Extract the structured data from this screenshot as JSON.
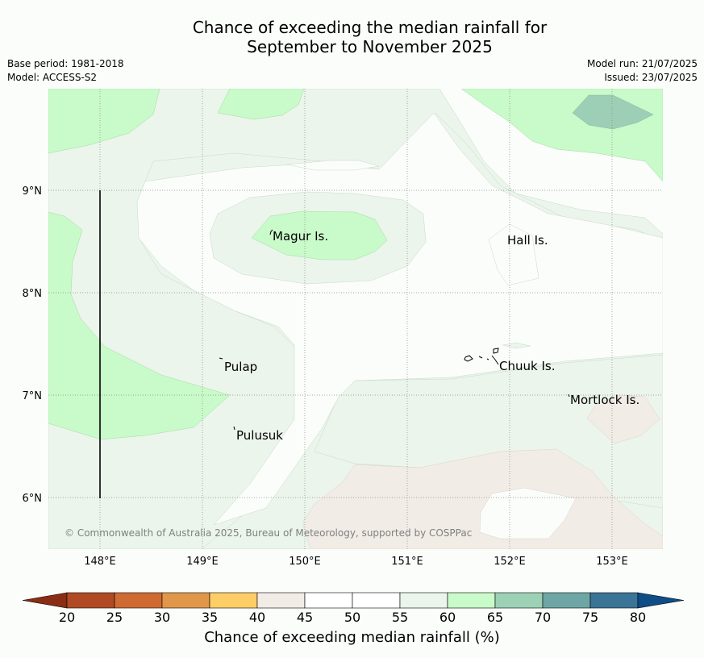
{
  "title": {
    "line1": "Chance of exceeding the median rainfall for",
    "line2": "September to November 2025"
  },
  "meta": {
    "base_period": "Base period: 1981-2018",
    "model": "Model: ACCESS-S2",
    "model_run": "Model run: 21/07/2025",
    "issued": "Issued: 23/07/2025"
  },
  "axes": {
    "lon_labels": [
      "148°E",
      "149°E",
      "150°E",
      "151°E",
      "152°E",
      "153°E"
    ],
    "lat_labels": [
      "9°N",
      "8°N",
      "7°N",
      "6°N"
    ]
  },
  "places": {
    "magur": "Magur Is.",
    "hall": "Hall Is.",
    "pulap": "Pulap",
    "chuuk": "Chuuk Is.",
    "mortlock": "Mortlock Is.",
    "pulusuk": "Pulusuk"
  },
  "copyright": "© Commonwealth of Australia 2025, Bureau of Meteorology, supported by COSPPac",
  "colorbar": {
    "title": "Chance of exceeding median rainfall (%)",
    "ticks": [
      "20",
      "25",
      "30",
      "35",
      "40",
      "45",
      "50",
      "55",
      "60",
      "65",
      "70",
      "75",
      "80"
    ],
    "colors": [
      "#b04a25",
      "#cf6a33",
      "#e0974a",
      "#fdcd66",
      "#f1ece6",
      "#ffffff",
      "#ffffff",
      "#ebf5eb",
      "#c9fac9",
      "#9dd1b6",
      "#6ea6a6",
      "#3b7496"
    ],
    "under_color": "#8a2d14",
    "over_color": "#0e4d86"
  }
}
